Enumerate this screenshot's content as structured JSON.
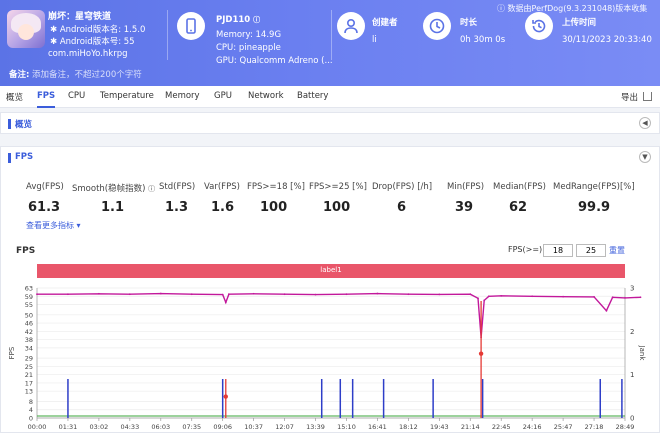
{
  "app": {
    "name": "崩坏：星穹铁道",
    "version_name": "Android版本名: 1.5.0",
    "version_code": "Android版本号: 55",
    "package": "com.miHoYo.hkrpg"
  },
  "device": {
    "model": "PJD110",
    "memory": "Memory: 14.9G",
    "cpu": "CPU: pineapple",
    "gpu": "GPU: Qualcomm Adreno (..."
  },
  "creator": {
    "title": "创建者",
    "value": "li"
  },
  "duration": {
    "title": "时长",
    "value": "0h 30m 0s"
  },
  "upload": {
    "title": "上传时间",
    "value": "30/11/2023 20:33:40"
  },
  "source_text": "数据由PerfDog(9.3.231048)版本收集",
  "note": {
    "label": "备注:",
    "placeholder": "添加备注，不超过200个字符"
  },
  "tabs": [
    "概览",
    "FPS",
    "CPU",
    "Temperature",
    "Memory",
    "GPU",
    "Network",
    "Battery"
  ],
  "active_tab": "FPS",
  "export_label": "导出",
  "overview_title": "概览",
  "fps_section_title": "FPS",
  "stats": {
    "headers": [
      "Avg(FPS)",
      "Smooth(稳帧指数)",
      "Std(FPS)",
      "Var(FPS)",
      "FPS>=18 [%]",
      "FPS>=25 [%]",
      "Drop(FPS) [/h]",
      "Min(FPS)",
      "Median(FPS)",
      "MedRange(FPS)[%]"
    ],
    "values": [
      "61.3",
      "1.1",
      "1.3",
      "1.6",
      "100",
      "100",
      "6",
      "39",
      "62",
      "99.9"
    ]
  },
  "more_metrics": "查看更多指标",
  "chart_title": "FPS",
  "threshold": {
    "label": "FPS(>=)",
    "value1": "18",
    "value2": "25",
    "reset": "重置"
  },
  "label_bar": "label1",
  "colors": {
    "header": "#5b73e6",
    "accent": "#3b5ddb",
    "fps_line": "#c2189b",
    "jank": "#2e3ec8",
    "big_jank": "#e53935",
    "label_bar": "#e9566a",
    "green": "#3aa63a"
  },
  "chart_data": {
    "type": "line",
    "title": "FPS",
    "ylabel": "FPS",
    "y2label": "Jank",
    "ylim": [
      0,
      63
    ],
    "y2lim": [
      0,
      3
    ],
    "yticks": [
      0,
      4,
      8,
      13,
      17,
      21,
      25,
      29,
      34,
      38,
      42,
      46,
      50,
      55,
      59,
      63
    ],
    "y2ticks": [
      0,
      1,
      2,
      3
    ],
    "xticks": [
      "00:00",
      "01:31",
      "03:02",
      "04:33",
      "06:03",
      "07:35",
      "09:06",
      "10:37",
      "12:07",
      "13:39",
      "15:10",
      "16:41",
      "18:12",
      "19:43",
      "21:14",
      "22:45",
      "24:16",
      "25:47",
      "27:18",
      "28:49"
    ],
    "series": [
      {
        "name": "FPS",
        "points": [
          [
            0,
            60
          ],
          [
            1,
            60
          ],
          [
            2,
            60.2
          ],
          [
            3,
            60
          ],
          [
            4,
            60.3
          ],
          [
            5,
            60
          ],
          [
            6,
            59.8
          ],
          [
            6.1,
            56
          ],
          [
            6.2,
            60
          ],
          [
            7,
            60.2
          ],
          [
            8,
            60
          ],
          [
            9,
            59.8
          ],
          [
            10,
            60
          ],
          [
            11,
            60.3
          ],
          [
            12,
            60
          ],
          [
            13,
            59.9
          ],
          [
            14,
            60
          ],
          [
            14.25,
            58
          ],
          [
            14.35,
            39
          ],
          [
            14.45,
            57
          ],
          [
            14.6,
            59
          ],
          [
            15,
            59.2
          ],
          [
            16,
            59
          ],
          [
            17,
            58.8
          ],
          [
            18,
            58.7
          ],
          [
            18.4,
            52
          ],
          [
            18.6,
            58.5
          ],
          [
            19,
            58.2
          ],
          [
            19.5,
            58.5
          ]
        ]
      },
      {
        "name": "Jank",
        "points": [
          [
            1,
            0.9
          ],
          [
            6,
            0.9
          ],
          [
            9.2,
            0.9
          ],
          [
            9.8,
            0.9
          ],
          [
            10.2,
            0.9
          ],
          [
            11.2,
            0.9
          ],
          [
            12.8,
            0.9
          ],
          [
            14.4,
            0.9
          ],
          [
            18.2,
            0.9
          ],
          [
            18.9,
            0.9
          ]
        ]
      },
      {
        "name": "BigJank",
        "points": [
          [
            6.1,
            0.9
          ],
          [
            14.35,
            2.7
          ]
        ]
      }
    ]
  }
}
